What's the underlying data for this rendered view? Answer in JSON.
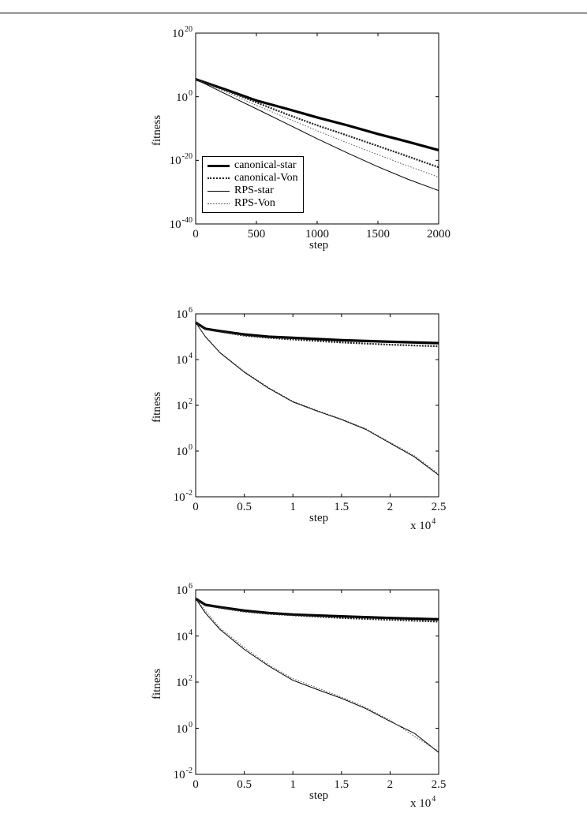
{
  "chart_data": [
    {
      "type": "line",
      "xlabel": "step",
      "ylabel": "fitness",
      "xlim": [
        0,
        2000
      ],
      "ylim_exponent": [
        -40,
        20
      ],
      "yscale": "log",
      "x_ticks": [
        "0",
        "500",
        "1000",
        "1500",
        "2000"
      ],
      "y_ticks": [
        {
          "base": "10",
          "exp": "20"
        },
        {
          "base": "10",
          "exp": "0"
        },
        {
          "base": "10",
          "exp": "-20"
        },
        {
          "base": "10",
          "exp": "-40"
        }
      ],
      "x_multiplier": null,
      "legend": {
        "placement": "bottom-left",
        "entries": [
          "canonical-star",
          "canonical-Von",
          "RPS-star",
          "RPS-Von"
        ]
      },
      "series": [
        {
          "name": "canonical-star",
          "style": "thick",
          "x": [
            0,
            250,
            500,
            750,
            1000,
            1250,
            1500,
            1750,
            2000
          ],
          "log10_y": [
            5.5,
            2.2,
            -1.2,
            -3.8,
            -6.5,
            -9.0,
            -11.7,
            -14.2,
            -16.8
          ]
        },
        {
          "name": "canonical-Von",
          "style": "dotted",
          "x": [
            0,
            250,
            500,
            750,
            1000,
            1250,
            1500,
            1750,
            2000
          ],
          "log10_y": [
            5.5,
            2.0,
            -1.8,
            -5.5,
            -9.0,
            -12.2,
            -15.5,
            -18.8,
            -22.2
          ]
        },
        {
          "name": "RPS-star",
          "style": "thin",
          "x": [
            0,
            250,
            500,
            750,
            1000,
            1250,
            1500,
            1750,
            2000
          ],
          "log10_y": [
            5.5,
            0.8,
            -3.8,
            -8.5,
            -13.2,
            -17.7,
            -22.0,
            -26.0,
            -29.5
          ]
        },
        {
          "name": "RPS-Von",
          "style": "thin-dotted",
          "x": [
            0,
            250,
            500,
            750,
            1000,
            1250,
            1500,
            1750,
            2000
          ],
          "log10_y": [
            5.5,
            1.5,
            -2.7,
            -6.7,
            -10.7,
            -14.5,
            -18.2,
            -21.8,
            -25.3
          ]
        }
      ]
    },
    {
      "type": "line",
      "xlabel": "step",
      "ylabel": "fitness",
      "xlim": [
        0,
        2.5
      ],
      "ylim_exponent": [
        -2,
        6
      ],
      "yscale": "log",
      "x_ticks": [
        "0",
        "0.5",
        "1",
        "1.5",
        "2",
        "2.5"
      ],
      "y_ticks": [
        {
          "base": "10",
          "exp": "6"
        },
        {
          "base": "10",
          "exp": "4"
        },
        {
          "base": "10",
          "exp": "2"
        },
        {
          "base": "10",
          "exp": "0"
        },
        {
          "base": "10",
          "exp": "-2"
        }
      ],
      "x_multiplier": {
        "base": "x 10",
        "exp": "4"
      },
      "series": [
        {
          "name": "canonical-star",
          "style": "thick",
          "x": [
            0,
            0.1,
            0.25,
            0.5,
            0.75,
            1.0,
            1.5,
            2.0,
            2.5
          ],
          "log10_y": [
            5.62,
            5.35,
            5.25,
            5.1,
            5.0,
            4.95,
            4.85,
            4.78,
            4.72
          ]
        },
        {
          "name": "canonical-Von",
          "style": "dotted",
          "x": [
            0,
            0.1,
            0.25,
            0.5,
            0.75,
            1.0,
            1.5,
            2.0,
            2.5
          ],
          "log10_y": [
            5.62,
            5.33,
            5.22,
            5.05,
            4.95,
            4.88,
            4.75,
            4.65,
            4.58
          ]
        },
        {
          "name": "RPS-star",
          "style": "thin",
          "x": [
            0,
            0.1,
            0.25,
            0.5,
            0.75,
            1.0,
            1.25,
            1.5,
            1.75,
            2.0,
            2.25,
            2.5
          ],
          "log10_y": [
            5.62,
            5.0,
            4.3,
            3.45,
            2.75,
            2.15,
            1.75,
            1.38,
            0.95,
            0.35,
            -0.25,
            -1.05
          ]
        },
        {
          "name": "RPS-Von",
          "style": "thin-dotted",
          "x": [
            0,
            0.1,
            0.25,
            0.5,
            0.75,
            1.0,
            1.25,
            1.5,
            1.75,
            2.0,
            2.25,
            2.5
          ],
          "log10_y": [
            5.62,
            5.02,
            4.32,
            3.48,
            2.78,
            2.18,
            1.78,
            1.4,
            0.98,
            0.38,
            -0.2,
            -1.0
          ]
        }
      ]
    },
    {
      "type": "line",
      "xlabel": "step",
      "ylabel": "fitness",
      "xlim": [
        0,
        2.5
      ],
      "ylim_exponent": [
        -2,
        6
      ],
      "yscale": "log",
      "x_ticks": [
        "0",
        "0.5",
        "1",
        "1.5",
        "2",
        "2.5"
      ],
      "y_ticks": [
        {
          "base": "10",
          "exp": "6"
        },
        {
          "base": "10",
          "exp": "4"
        },
        {
          "base": "10",
          "exp": "2"
        },
        {
          "base": "10",
          "exp": "0"
        },
        {
          "base": "10",
          "exp": "-2"
        }
      ],
      "x_multiplier": {
        "base": "x 10",
        "exp": "4"
      },
      "series": [
        {
          "name": "canonical-star",
          "style": "thick",
          "x": [
            0,
            0.1,
            0.25,
            0.5,
            0.75,
            1.0,
            1.5,
            2.0,
            2.5
          ],
          "log10_y": [
            5.62,
            5.35,
            5.25,
            5.1,
            5.0,
            4.93,
            4.85,
            4.78,
            4.72
          ]
        },
        {
          "name": "canonical-Von",
          "style": "dotted",
          "x": [
            0,
            0.1,
            0.25,
            0.5,
            0.75,
            1.0,
            1.5,
            2.0,
            2.5
          ],
          "log10_y": [
            5.62,
            5.33,
            5.22,
            5.06,
            4.96,
            4.9,
            4.78,
            4.7,
            4.62
          ]
        },
        {
          "name": "RPS-star",
          "style": "thin",
          "x": [
            0,
            0.1,
            0.25,
            0.5,
            0.75,
            1.0,
            1.25,
            1.5,
            1.75,
            2.0,
            2.25,
            2.5
          ],
          "log10_y": [
            5.62,
            5.0,
            4.28,
            3.42,
            2.7,
            2.08,
            1.68,
            1.3,
            0.85,
            0.3,
            -0.22,
            -1.05
          ]
        },
        {
          "name": "RPS-Von",
          "style": "thin-dotted",
          "x": [
            0,
            0.1,
            0.25,
            0.5,
            0.75,
            1.0,
            1.25,
            1.5,
            1.75,
            2.0,
            2.25,
            2.5
          ],
          "log10_y": [
            5.62,
            5.1,
            4.35,
            3.5,
            2.75,
            2.15,
            1.75,
            1.35,
            0.9,
            0.35,
            -0.35,
            -1.0
          ]
        }
      ]
    }
  ]
}
